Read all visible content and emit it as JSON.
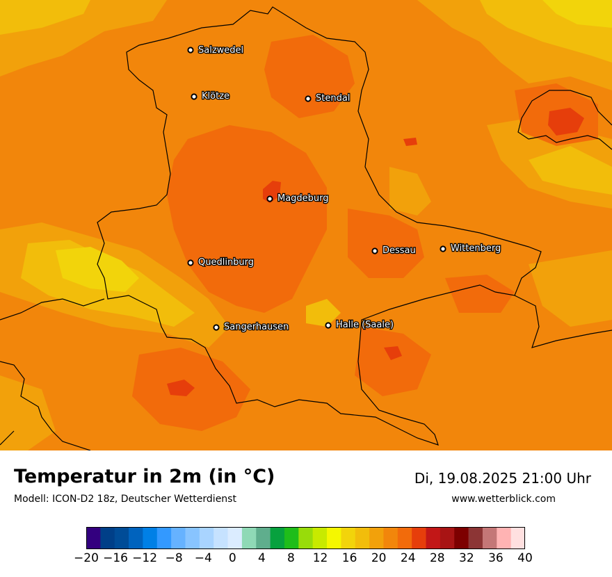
{
  "map": {
    "cities": [
      {
        "name": "Salzwedel"
      },
      {
        "name": "Klötze"
      },
      {
        "name": "Stendal"
      },
      {
        "name": "Magdeburg"
      },
      {
        "name": "Dessau"
      },
      {
        "name": "Wittenberg"
      },
      {
        "name": "Quedlinburg"
      },
      {
        "name": "Sangerhausen"
      },
      {
        "name": "Halle (Saale)"
      }
    ]
  },
  "footer": {
    "title": "Temperatur in 2m (in °C)",
    "subtitle": "Modell: ICON-D2 18z, Deutscher Wetterdienst",
    "datetime": "Di, 19.08.2025 21:00 Uhr",
    "website": "www.wetterblick.com"
  },
  "legend": {
    "unit": "°C",
    "range": [
      -20,
      40
    ],
    "step": 2,
    "tick_labels": [
      "−20",
      "−16",
      "−12",
      "−8",
      "−4",
      "0",
      "4",
      "8",
      "12",
      "16",
      "20",
      "24",
      "28",
      "32",
      "36",
      "40"
    ],
    "colors": [
      "#33007f",
      "#003f88",
      "#004c97",
      "#0063be",
      "#0080e6",
      "#3399ff",
      "#66b2ff",
      "#88c4ff",
      "#a9d4ff",
      "#c6e2ff",
      "#dbecff",
      "#8fd9b6",
      "#5fae8d",
      "#07a13e",
      "#1fbd1a",
      "#98dc0a",
      "#c8ea00",
      "#f5f700",
      "#f2d40b",
      "#f2bd0b",
      "#f2a10b",
      "#f2860b",
      "#f26b0b",
      "#e63e0b",
      "#c21717",
      "#a81414",
      "#7d0000",
      "#8c3535",
      "#c47777",
      "#ffb3b3",
      "#ffe0e0"
    ]
  },
  "colors": {
    "base": "#f2860b",
    "light": "#f2a10b",
    "yellow": "#f2bd0b",
    "yellow_bright": "#f2d40b",
    "dark": "#f26b0b",
    "hot": "#e63e0b"
  }
}
